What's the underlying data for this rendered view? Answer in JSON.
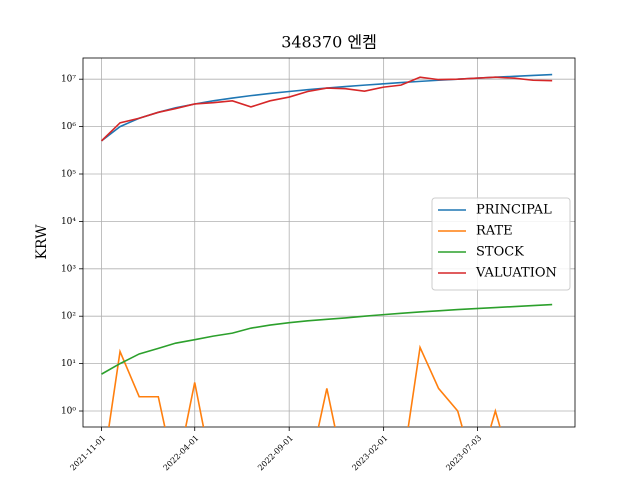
{
  "chart_data": {
    "type": "line",
    "title": "348370 엔켐",
    "ylabel": "KRW",
    "x": [
      "2021-11-01",
      "2021-12-01",
      "2022-01-01",
      "2022-02-01",
      "2022-03-01",
      "2022-04-01",
      "2022-05-01",
      "2022-06-01",
      "2022-07-01",
      "2022-08-01",
      "2022-09-01",
      "2022-10-01",
      "2022-11-01",
      "2022-12-01",
      "2023-01-01",
      "2023-02-01",
      "2023-03-01",
      "2023-04-01",
      "2023-05-01",
      "2023-06-01",
      "2023-07-01",
      "2023-08-01",
      "2023-09-01",
      "2023-10-01",
      "2023-11-01"
    ],
    "series": [
      {
        "name": "PRINCIPAL",
        "color": "#1f77b4",
        "values": [
          500000,
          1000000,
          1500000,
          2000000,
          2500000,
          3000000,
          3500000,
          4000000,
          4500000,
          5000000,
          5500000,
          6000000,
          6500000,
          7000000,
          7500000,
          8000000,
          8500000,
          9000000,
          9500000,
          10000000,
          10500000,
          11000000,
          11500000,
          12000000,
          12500000
        ]
      },
      {
        "name": "RATE",
        "color": "#ff7f0e",
        "values": [
          0,
          18,
          2,
          2,
          0,
          4,
          0,
          0,
          0,
          0,
          0,
          0,
          3,
          0,
          0,
          0,
          0,
          22,
          3,
          1,
          0,
          1,
          0,
          0,
          0
        ]
      },
      {
        "name": "STOCK",
        "color": "#2ca02c",
        "values": [
          6,
          10,
          16,
          21,
          27,
          32,
          38,
          44,
          56,
          65,
          73,
          80,
          86,
          92,
          100,
          108,
          115,
          123,
          130,
          138,
          145,
          152,
          160,
          168,
          176
        ]
      },
      {
        "name": "VALUATION",
        "color": "#d62728",
        "values": [
          500000,
          1200000,
          1500000,
          2000000,
          2400000,
          3000000,
          3200000,
          3500000,
          2600000,
          3500000,
          4200000,
          5500000,
          6500000,
          6300000,
          5600000,
          6800000,
          7500000,
          11000000,
          9800000,
          10000000,
          10500000,
          11000000,
          10500000,
          9500000,
          9300000
        ]
      }
    ],
    "xlim": [
      "2021-10-02",
      "2023-12-08"
    ],
    "xticks": [
      "2021-11-01",
      "2022-04-01",
      "2022-09-01",
      "2023-02-01",
      "2023-07-03"
    ],
    "ylim": [
      0.46,
      28000000
    ],
    "yticks": [
      {
        "value": 1,
        "label": "10⁰"
      },
      {
        "value": 10,
        "label": "10¹"
      },
      {
        "value": 100,
        "label": "10²"
      },
      {
        "value": 1000,
        "label": "10³"
      },
      {
        "value": 10000,
        "label": "10⁴"
      },
      {
        "value": 100000,
        "label": "10⁵"
      },
      {
        "value": 1000000,
        "label": "10⁶"
      },
      {
        "value": 10000000,
        "label": "10⁷"
      }
    ],
    "log_y": true,
    "grid": true,
    "legend": "center right"
  }
}
